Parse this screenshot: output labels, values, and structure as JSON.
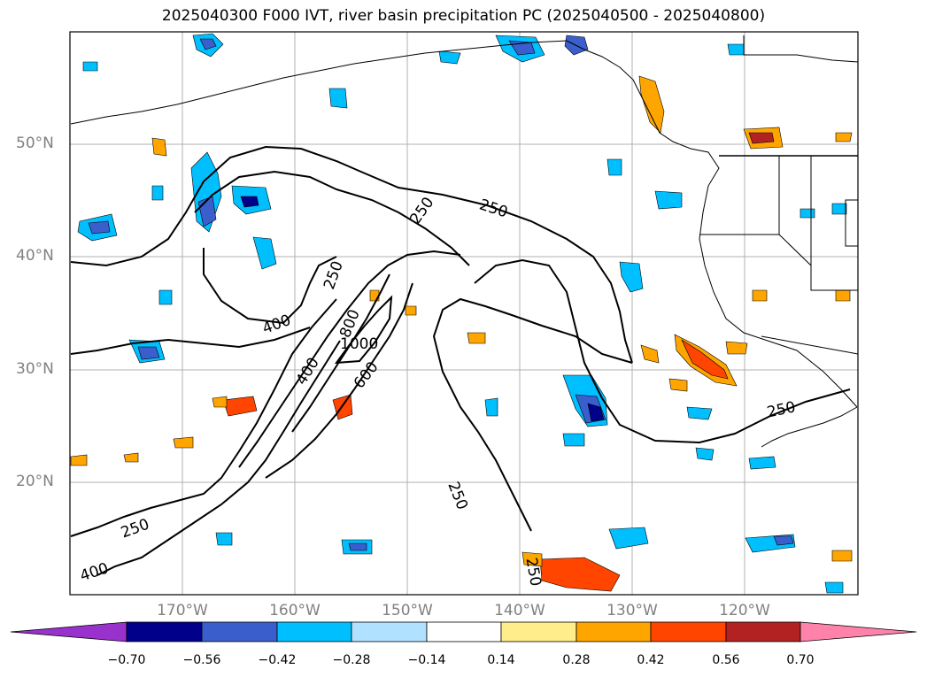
{
  "title": "2025040300 F000 IVT, river basin precipitation PC (2025040500 - 2025040800)",
  "map": {
    "lat_labels": [
      "50°N",
      "40°N",
      "30°N",
      "20°N"
    ],
    "lon_labels": [
      "170°W",
      "160°W",
      "150°W",
      "140°W",
      "130°W",
      "120°W"
    ],
    "ivt_contour_labels": [
      "250",
      "250",
      "250",
      "250",
      "250",
      "250",
      "250",
      "400",
      "400",
      "400",
      "600",
      "800",
      "1000"
    ]
  },
  "colorbar": {
    "ticks": [
      "−0.70",
      "−0.56",
      "−0.42",
      "−0.28",
      "−0.14",
      "0.14",
      "0.28",
      "0.42",
      "0.56",
      "0.70"
    ],
    "colors": [
      "#9932cc",
      "#00008b",
      "#3a5fcd",
      "#00bfff",
      "#b0e2ff",
      "#ffffff",
      "#ffec8b",
      "#ffa500",
      "#ff4500",
      "#b22222",
      "#ff82ab"
    ]
  }
}
